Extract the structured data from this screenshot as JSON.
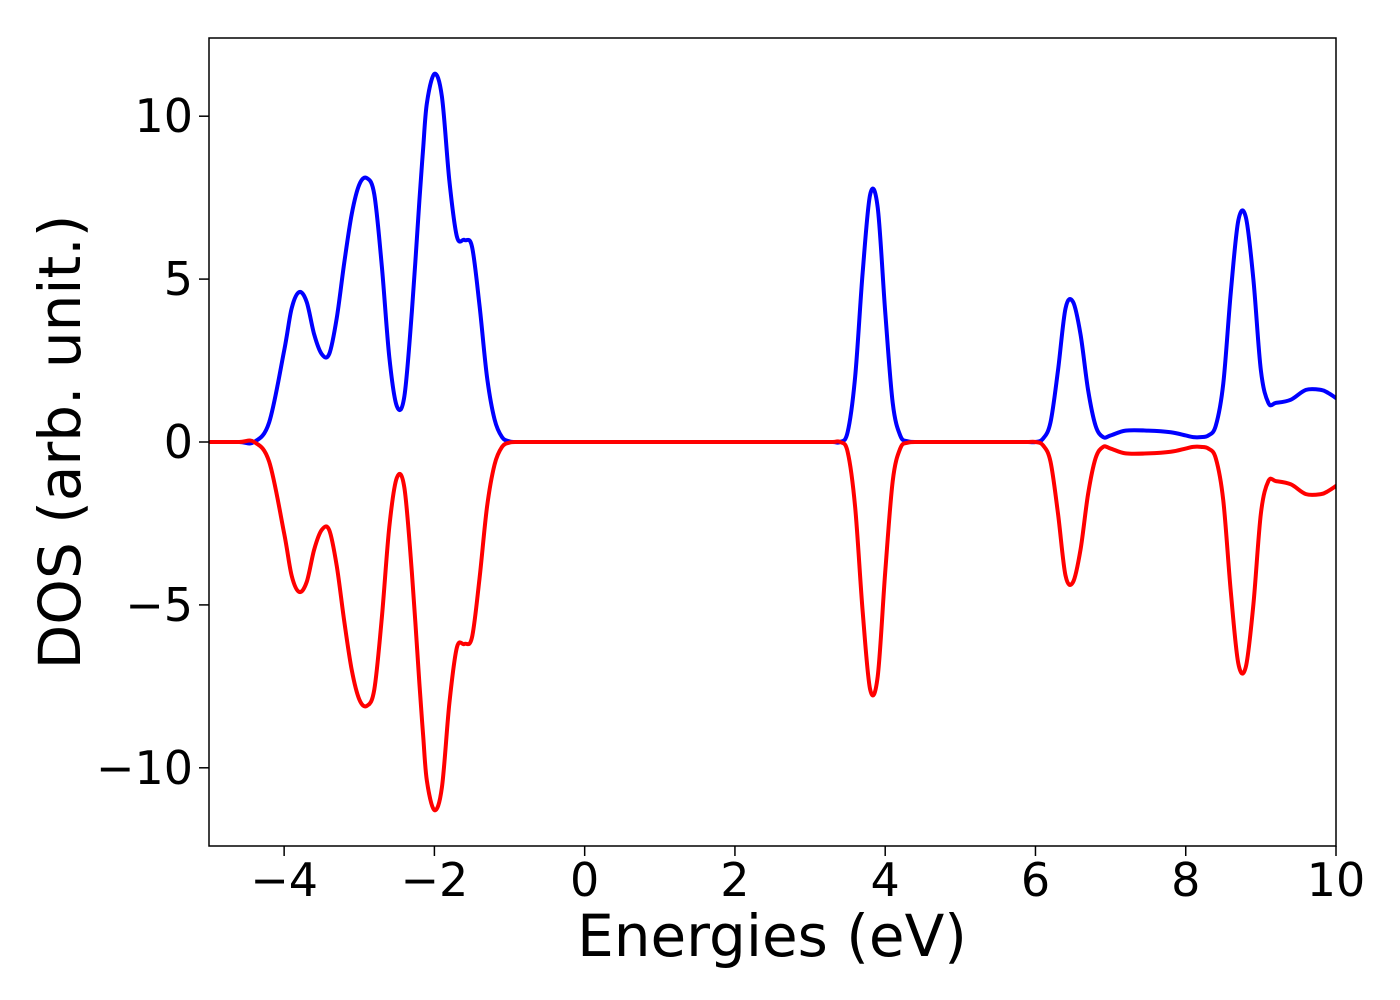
{
  "chart_data": {
    "type": "line",
    "title": "",
    "xlabel": "Energies (eV)",
    "ylabel": "DOS (arb. unit.)",
    "xlim": [
      -5,
      10
    ],
    "ylim": [
      -12.4,
      12.4
    ],
    "x_ticks": [
      -4,
      -2,
      0,
      2,
      4,
      6,
      8,
      10
    ],
    "x_tick_labels": [
      "−4",
      "−2",
      "0",
      "2",
      "4",
      "6",
      "8",
      "10"
    ],
    "y_ticks": [
      10,
      5,
      0,
      -5,
      -10
    ],
    "y_tick_labels": [
      "10",
      "5",
      "0",
      "−5",
      "−10"
    ],
    "grid": false,
    "legend": "none",
    "series": [
      {
        "color": "#0000ff",
        "x": [
          -5.0,
          -4.6,
          -4.4,
          -4.2,
          -4.0,
          -3.9,
          -3.8,
          -3.7,
          -3.6,
          -3.5,
          -3.4,
          -3.3,
          -3.2,
          -3.1,
          -3.0,
          -2.9,
          -2.8,
          -2.7,
          -2.6,
          -2.5,
          -2.4,
          -2.3,
          -2.2,
          -2.15,
          -2.1,
          -2.0,
          -1.9,
          -1.8,
          -1.7,
          -1.6,
          -1.5,
          -1.4,
          -1.3,
          -1.2,
          -1.1,
          -1.0,
          -0.9,
          -0.8,
          -0.7,
          -0.6,
          -0.5,
          0.0,
          1.0,
          2.0,
          3.0,
          3.3,
          3.4,
          3.5,
          3.6,
          3.7,
          3.8,
          3.9,
          4.0,
          4.1,
          4.2,
          4.3,
          4.5,
          5.0,
          5.6,
          5.7,
          5.8,
          5.9,
          6.0,
          6.1,
          6.2,
          6.3,
          6.4,
          6.5,
          6.6,
          6.7,
          6.8,
          6.9,
          7.0,
          7.2,
          7.5,
          7.8,
          8.0,
          8.1,
          8.2,
          8.3,
          8.4,
          8.5,
          8.6,
          8.7,
          8.8,
          8.9,
          9.0,
          9.1,
          9.2,
          9.4,
          9.6,
          9.8,
          9.9,
          10.0
        ],
        "y": [
          0.0,
          0.0,
          0.0,
          0.6,
          2.8,
          4.1,
          4.6,
          4.3,
          3.3,
          2.7,
          2.7,
          3.8,
          5.5,
          7.0,
          7.9,
          8.1,
          7.6,
          5.4,
          2.6,
          1.1,
          1.4,
          4.0,
          7.4,
          9.0,
          10.4,
          11.3,
          10.6,
          8.0,
          6.3,
          6.2,
          6.0,
          4.2,
          2.0,
          0.7,
          0.15,
          0.02,
          0.0,
          0.0,
          0.0,
          0.0,
          0.0,
          0.0,
          0.0,
          0.0,
          0.0,
          0.0,
          0.0,
          0.3,
          2.0,
          5.2,
          7.6,
          7.2,
          4.0,
          1.2,
          0.2,
          0.02,
          0.0,
          0.0,
          0.0,
          0.0,
          0.0,
          0.0,
          0.0,
          0.1,
          0.6,
          2.2,
          4.1,
          4.3,
          3.3,
          1.6,
          0.5,
          0.15,
          0.2,
          0.35,
          0.35,
          0.3,
          0.2,
          0.15,
          0.15,
          0.2,
          0.5,
          1.8,
          4.6,
          6.8,
          6.9,
          5.0,
          2.2,
          1.2,
          1.2,
          1.3,
          1.6,
          1.6,
          1.5,
          1.35
        ]
      },
      {
        "color": "#ff0000",
        "x": [
          -5.0,
          -4.6,
          -4.4,
          -4.2,
          -4.0,
          -3.9,
          -3.8,
          -3.7,
          -3.6,
          -3.5,
          -3.4,
          -3.3,
          -3.2,
          -3.1,
          -3.0,
          -2.9,
          -2.8,
          -2.7,
          -2.6,
          -2.5,
          -2.4,
          -2.3,
          -2.2,
          -2.15,
          -2.1,
          -2.0,
          -1.9,
          -1.8,
          -1.7,
          -1.6,
          -1.5,
          -1.4,
          -1.3,
          -1.2,
          -1.1,
          -1.0,
          -0.9,
          -0.8,
          -0.7,
          -0.6,
          -0.5,
          0.0,
          1.0,
          2.0,
          3.0,
          3.3,
          3.4,
          3.5,
          3.6,
          3.7,
          3.8,
          3.9,
          4.0,
          4.1,
          4.2,
          4.3,
          4.5,
          5.0,
          5.6,
          5.7,
          5.8,
          5.9,
          6.0,
          6.1,
          6.2,
          6.3,
          6.4,
          6.5,
          6.6,
          6.7,
          6.8,
          6.9,
          7.0,
          7.2,
          7.5,
          7.8,
          8.0,
          8.1,
          8.2,
          8.3,
          8.4,
          8.5,
          8.6,
          8.7,
          8.8,
          8.9,
          9.0,
          9.1,
          9.2,
          9.4,
          9.6,
          9.8,
          9.9,
          10.0
        ],
        "y": [
          0.0,
          0.0,
          0.0,
          -0.6,
          -2.8,
          -4.1,
          -4.6,
          -4.3,
          -3.3,
          -2.7,
          -2.7,
          -3.8,
          -5.5,
          -7.0,
          -7.9,
          -8.1,
          -7.6,
          -5.4,
          -2.6,
          -1.1,
          -1.4,
          -4.0,
          -7.4,
          -9.0,
          -10.4,
          -11.3,
          -10.6,
          -8.0,
          -6.3,
          -6.2,
          -6.0,
          -4.2,
          -2.0,
          -0.7,
          -0.15,
          -0.02,
          0.0,
          0.0,
          0.0,
          0.0,
          0.0,
          0.0,
          0.0,
          0.0,
          0.0,
          0.0,
          0.0,
          -0.3,
          -2.0,
          -5.2,
          -7.6,
          -7.2,
          -4.0,
          -1.2,
          -0.2,
          -0.02,
          0.0,
          0.0,
          0.0,
          0.0,
          0.0,
          0.0,
          0.0,
          -0.1,
          -0.6,
          -2.2,
          -4.1,
          -4.3,
          -3.3,
          -1.6,
          -0.5,
          -0.15,
          -0.2,
          -0.35,
          -0.35,
          -0.3,
          -0.2,
          -0.15,
          -0.15,
          -0.2,
          -0.5,
          -1.8,
          -4.6,
          -6.8,
          -6.9,
          -5.0,
          -2.2,
          -1.2,
          -1.2,
          -1.3,
          -1.6,
          -1.6,
          -1.5,
          -1.35
        ]
      }
    ]
  }
}
